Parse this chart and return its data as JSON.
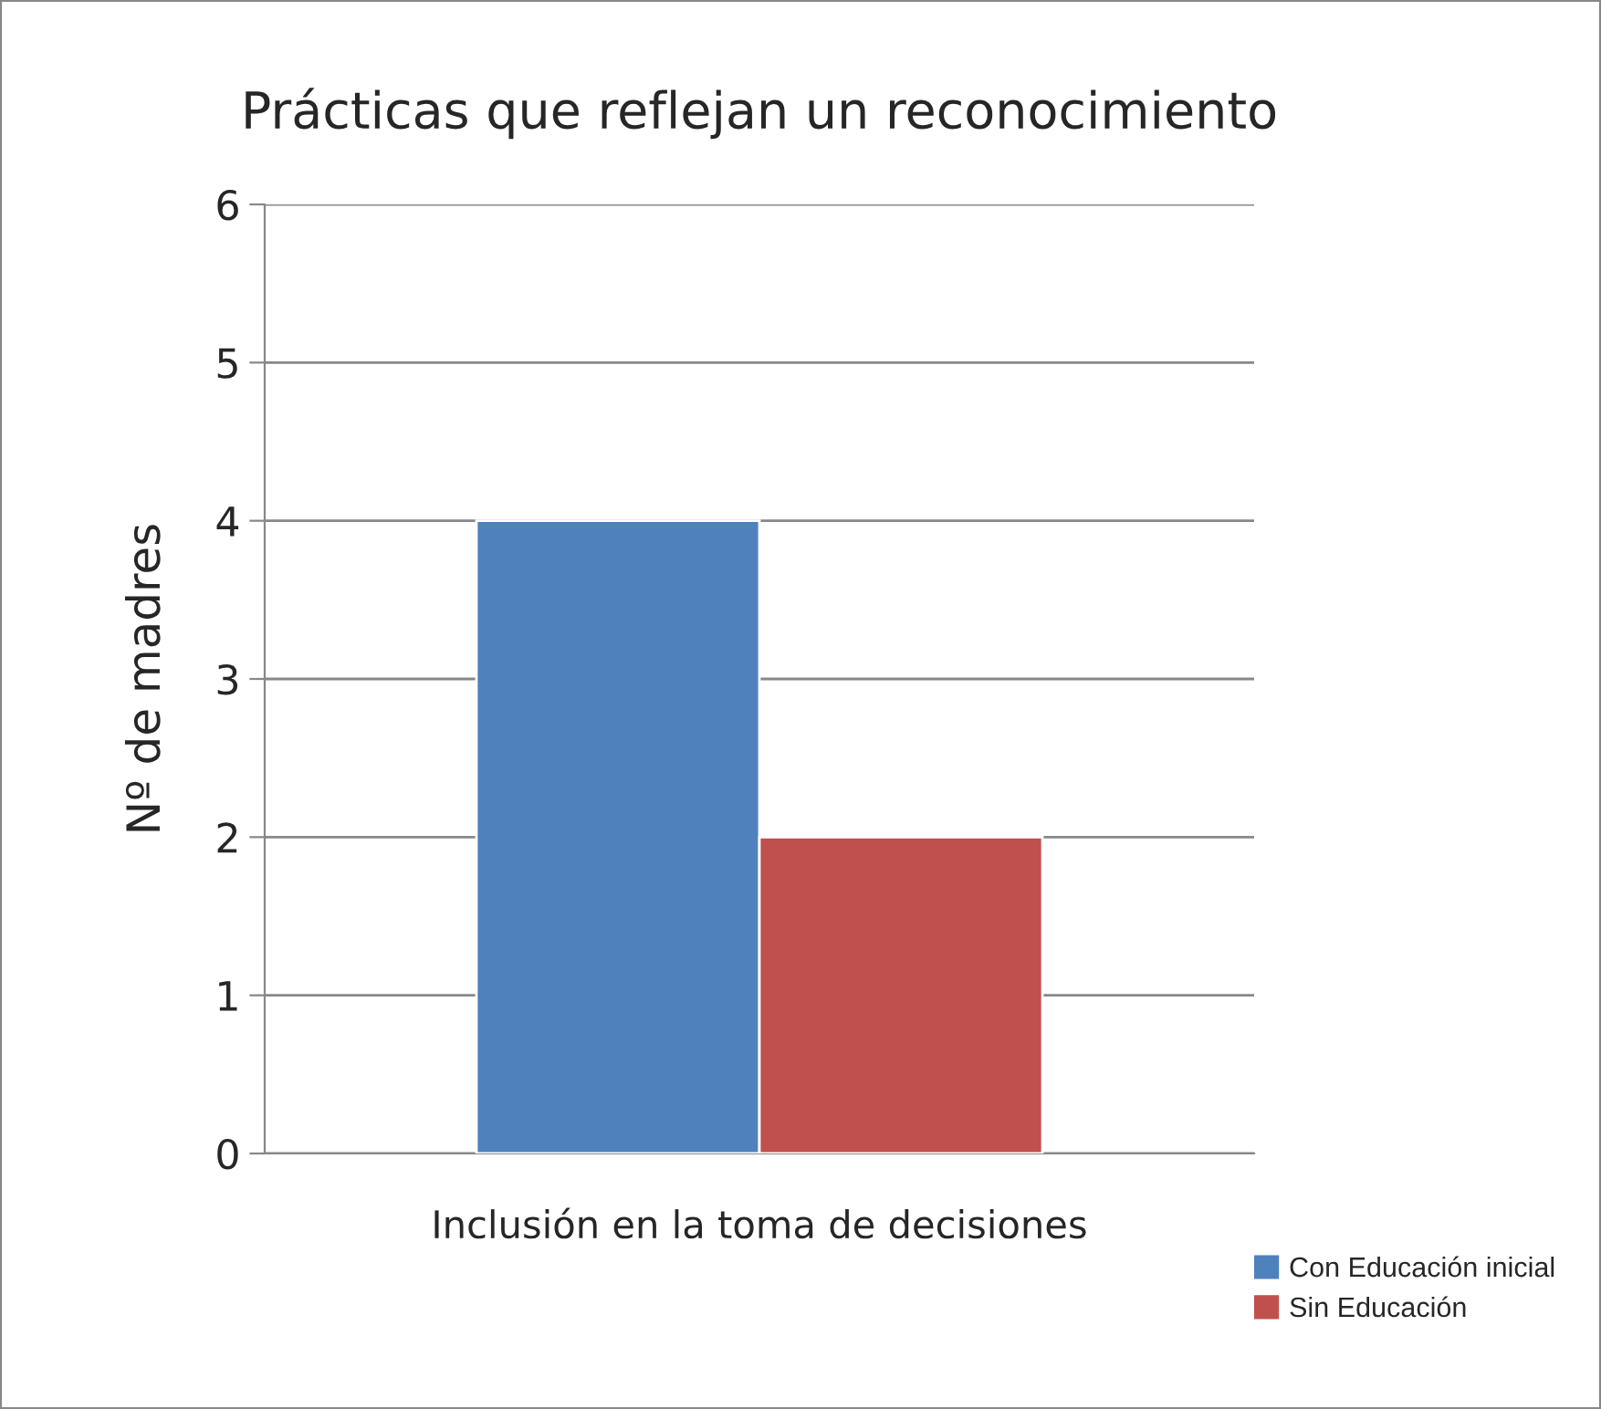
{
  "chart_data": {
    "type": "bar",
    "title": "Prácticas que reflejan un reconocimiento",
    "ylabel": "Nº de madres",
    "categories": [
      "Inclusión en la toma de decisiones"
    ],
    "series": [
      {
        "name": "Con Educación inicial",
        "color": "#4f81bd",
        "values": [
          4
        ]
      },
      {
        "name": "Sin Educación",
        "color": "#c0504d",
        "values": [
          2
        ]
      }
    ],
    "ylim": [
      0,
      6
    ],
    "yticks": [
      0,
      1,
      2,
      3,
      4,
      5,
      6
    ],
    "grid": "y",
    "legend": "bottom right"
  }
}
